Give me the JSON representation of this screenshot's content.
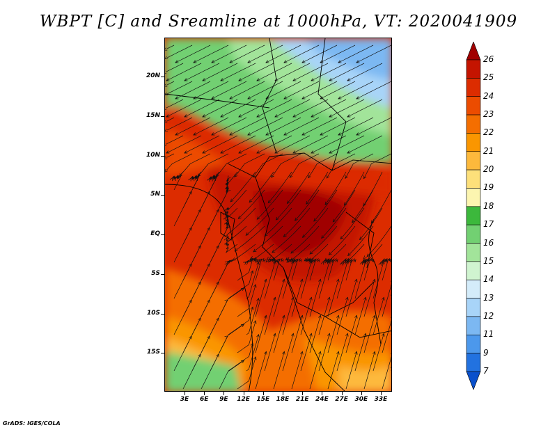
{
  "title": "WBPT [C] and Sreamline at 1000hPa, VT: 2020041909",
  "credit": "GrADS: IGES/COLA",
  "map": {
    "lat_labels": [
      "20N",
      "15N",
      "10N",
      "5N",
      "EQ",
      "5S",
      "10S",
      "15S"
    ],
    "lon_labels": [
      "3E",
      "6E",
      "9E",
      "12E",
      "15E",
      "18E",
      "21E",
      "24E",
      "27E",
      "30E",
      "33E"
    ],
    "lat_values": [
      20,
      15,
      10,
      5,
      0,
      -5,
      -10,
      -15
    ],
    "lon_values": [
      3,
      6,
      9,
      12,
      15,
      18,
      21,
      24,
      27,
      30,
      33
    ],
    "field": "wet-bulb potential temperature",
    "overlay": "streamlines",
    "level": "1000hPa"
  },
  "colorbar": {
    "labels": [
      "26",
      "25",
      "24",
      "23",
      "22",
      "21",
      "20",
      "19",
      "18",
      "17",
      "16",
      "15",
      "14",
      "13",
      "12",
      "11",
      "9",
      "7"
    ],
    "colors": [
      "#a00000",
      "#c41400",
      "#dc2c00",
      "#ec4c00",
      "#f46e00",
      "#fa9600",
      "#fdb93c",
      "#fde07a",
      "#fcf5b0",
      "#3cb83c",
      "#72d072",
      "#a2e49a",
      "#d0f4d0",
      "#d4ecfa",
      "#a8d4f8",
      "#7cb8f2",
      "#4c98ec",
      "#2272e0",
      "#0a50cc"
    ]
  }
}
